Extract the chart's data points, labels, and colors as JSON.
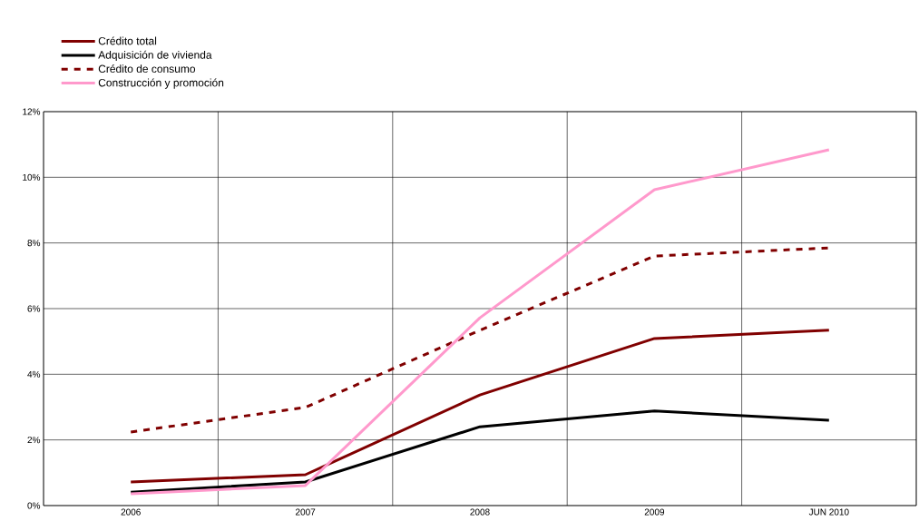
{
  "chart_data": {
    "type": "line",
    "categories": [
      "2006",
      "2007",
      "2008",
      "2009",
      "JUN 2010"
    ],
    "series": [
      {
        "name": "Crédito total",
        "color": "#800000",
        "values": [
          0.72,
          0.94,
          3.37,
          5.09,
          5.34
        ]
      },
      {
        "name": "Adquisición de vivienda",
        "color": "#000000",
        "values": [
          0.41,
          0.72,
          2.4,
          2.88,
          2.6
        ]
      },
      {
        "name": "Crédito de consumo",
        "color": "#800000",
        "line_style": "dashed",
        "values": [
          2.24,
          2.99,
          5.34,
          7.6,
          7.85
        ]
      },
      {
        "name": "Construcción y promoción",
        "color": "#ff99cc",
        "values": [
          0.36,
          0.61,
          5.72,
          9.62,
          10.84
        ]
      }
    ],
    "ylim": [
      0,
      12
    ],
    "yticks": [
      {
        "value": 0,
        "label": "0%"
      },
      {
        "value": 2,
        "label": "2%"
      },
      {
        "value": 4,
        "label": "4%"
      },
      {
        "value": 6,
        "label": "6%"
      },
      {
        "value": 8,
        "label": "8%"
      },
      {
        "value": 10,
        "label": "10%"
      },
      {
        "value": 12,
        "label": "12%"
      }
    ],
    "grid": true,
    "legend": "top left",
    "marker": "none",
    "line_style": "solid"
  }
}
